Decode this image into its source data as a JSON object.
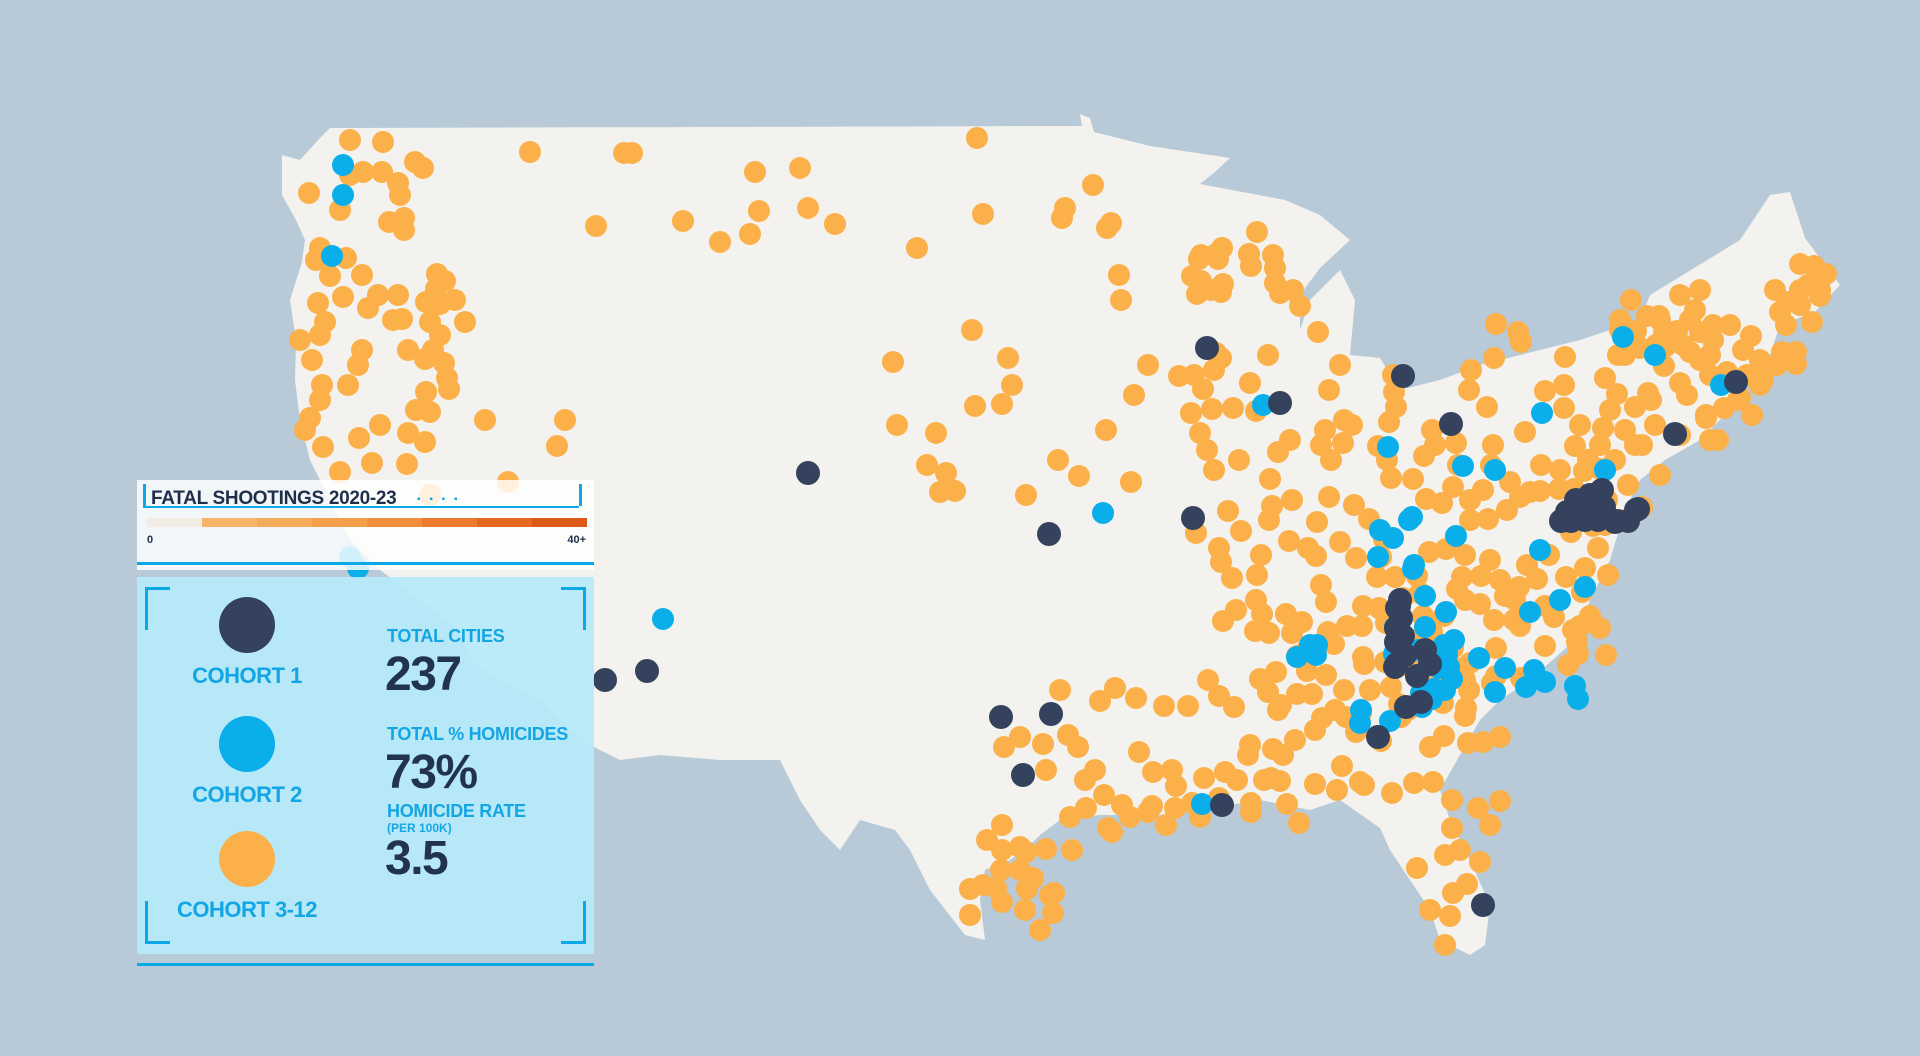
{
  "map": {
    "background": "#b8cad8",
    "land_color": "#f3f2ee",
    "cohort_colors": {
      "cohort1": "#34425e",
      "cohort2": "#0aaeea",
      "cohort3_12": "#fbb04a"
    }
  },
  "legend": {
    "title": "FATAL SHOOTINGS 2020-23",
    "scale_min": "0",
    "scale_max": "40+",
    "scale_colors": [
      "#f1ece4",
      "#f6b56a",
      "#f5ac5a",
      "#f3a04a",
      "#f08f3c",
      "#ec7c2c",
      "#e56a20",
      "#dd5a16"
    ],
    "cohorts": [
      {
        "label": "COHORT 1",
        "color": "#34425e"
      },
      {
        "label": "COHORT 2",
        "color": "#0aaeea"
      },
      {
        "label": "COHORT 3-12",
        "color": "#fbb04a"
      }
    ],
    "stats": {
      "total_cities_label": "TOTAL CITIES",
      "total_cities_value": "237",
      "total_homicides_label": "TOTAL % HOMICIDES",
      "total_homicides_value": "73%",
      "homicide_rate_label": "HOMICIDE RATE",
      "homicide_rate_sub": "(PER 100K)",
      "homicide_rate_value": "3.5"
    }
  }
}
